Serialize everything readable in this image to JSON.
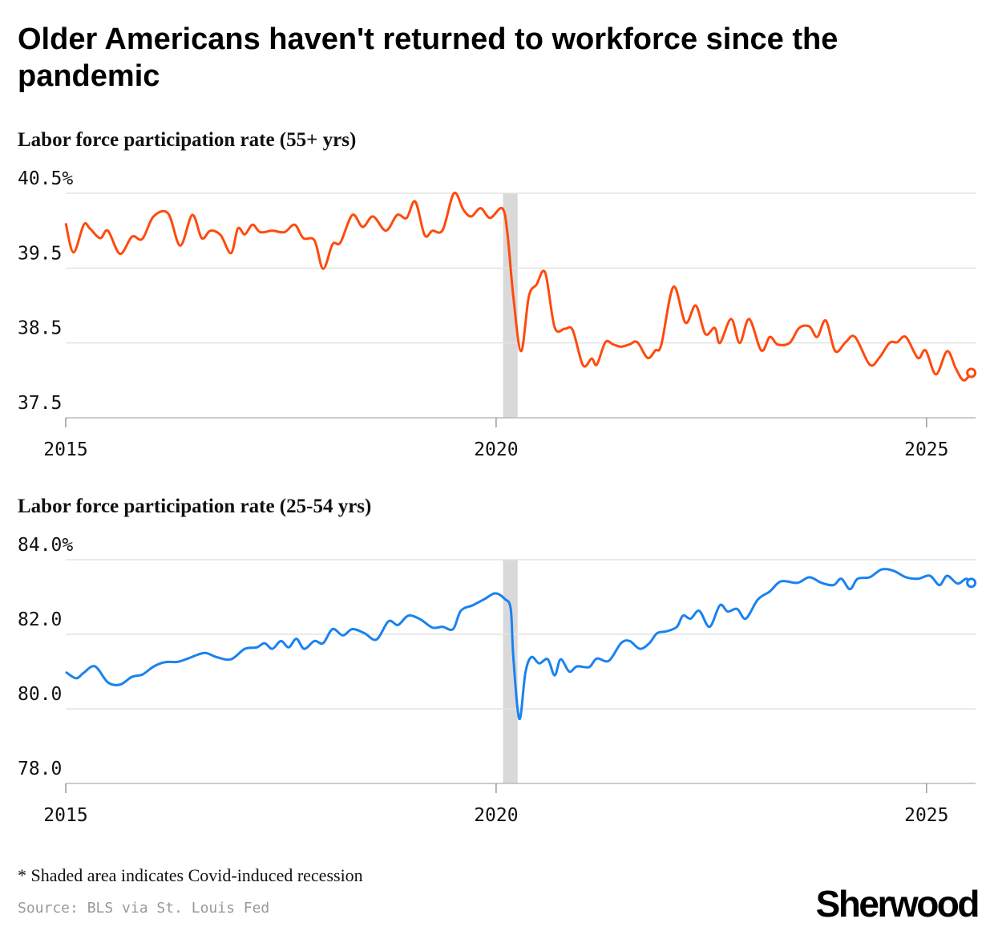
{
  "title": "Older Americans haven't returned to workforce since the pandemic",
  "chart_data": [
    {
      "type": "line",
      "subtitle": "Labor force participation rate (55+ yrs)",
      "color": "#ff4a0d",
      "x": [
        2015.0,
        2015.09,
        2015.21,
        2015.28,
        2015.4,
        2015.49,
        2015.63,
        2015.77,
        2015.89,
        2016.02,
        2016.19,
        2016.33,
        2016.47,
        2016.58,
        2016.68,
        2016.8,
        2016.92,
        2017.0,
        2017.08,
        2017.17,
        2017.26,
        2017.4,
        2017.54,
        2017.66,
        2017.76,
        2017.89,
        2017.99,
        2018.1,
        2018.19,
        2018.33,
        2018.45,
        2018.57,
        2018.72,
        2018.85,
        2018.96,
        2019.06,
        2019.17,
        2019.26,
        2019.38,
        2019.51,
        2019.62,
        2019.71,
        2019.82,
        2019.93,
        2020.07,
        2020.13,
        2020.2,
        2020.29,
        2020.38,
        2020.47,
        2020.57,
        2020.68,
        2020.8,
        2020.89,
        2021.01,
        2021.11,
        2021.17,
        2021.27,
        2021.36,
        2021.45,
        2021.55,
        2021.64,
        2021.76,
        2021.85,
        2021.92,
        2022.06,
        2022.2,
        2022.32,
        2022.43,
        2022.54,
        2022.6,
        2022.73,
        2022.83,
        2022.94,
        2023.08,
        2023.18,
        2023.27,
        2023.41,
        2023.52,
        2023.64,
        2023.73,
        2023.83,
        2023.94,
        2024.06,
        2024.17,
        2024.34,
        2024.45,
        2024.57,
        2024.66,
        2024.76,
        2024.9,
        2024.99,
        2025.11,
        2025.24,
        2025.34,
        2025.43,
        2025.52
      ],
      "values": [
        40.1,
        39.71,
        40.08,
        40.03,
        39.9,
        40.0,
        39.69,
        39.92,
        39.89,
        40.19,
        40.23,
        39.8,
        40.21,
        39.9,
        40.0,
        39.94,
        39.7,
        40.03,
        39.95,
        40.08,
        39.98,
        40.0,
        39.98,
        40.08,
        39.9,
        39.87,
        39.49,
        39.82,
        39.84,
        40.21,
        40.05,
        40.19,
        40.0,
        40.21,
        40.17,
        40.39,
        39.94,
        40.0,
        40.01,
        40.5,
        40.28,
        40.19,
        40.3,
        40.17,
        40.3,
        39.98,
        39.12,
        38.39,
        39.12,
        39.28,
        39.44,
        38.71,
        38.69,
        38.67,
        38.2,
        38.29,
        38.21,
        38.51,
        38.48,
        38.45,
        38.48,
        38.51,
        38.3,
        38.4,
        38.48,
        39.25,
        38.77,
        39.0,
        38.62,
        38.7,
        38.5,
        38.82,
        38.5,
        38.82,
        38.4,
        38.58,
        38.48,
        38.5,
        38.7,
        38.72,
        38.58,
        38.8,
        38.39,
        38.51,
        38.58,
        38.21,
        38.3,
        38.5,
        38.51,
        38.58,
        38.3,
        38.4,
        38.08,
        38.39,
        38.16,
        38.0,
        38.1
      ],
      "xlim": [
        2015,
        2025.57
      ],
      "xticks": [
        2015,
        2020,
        2025
      ],
      "ylim": [
        37.5,
        40.5
      ],
      "yticks": [
        {
          "value": 40.5,
          "label": "40.5%"
        },
        39.5,
        38.5,
        37.5
      ],
      "recession_span": [
        2020.08,
        2020.25
      ],
      "grid": true
    },
    {
      "type": "line",
      "subtitle": "Labor force participation rate (25-54 yrs)",
      "color": "#1a82f0",
      "x": [
        2015.0,
        2015.12,
        2015.21,
        2015.34,
        2015.49,
        2015.63,
        2015.77,
        2015.89,
        2016.01,
        2016.1,
        2016.19,
        2016.3,
        2016.42,
        2016.61,
        2016.75,
        2016.92,
        2017.08,
        2017.22,
        2017.31,
        2017.4,
        2017.5,
        2017.59,
        2017.68,
        2017.77,
        2017.89,
        2017.99,
        2018.1,
        2018.22,
        2018.33,
        2018.47,
        2018.61,
        2018.75,
        2018.86,
        2018.98,
        2019.12,
        2019.26,
        2019.38,
        2019.5,
        2019.59,
        2019.73,
        2019.87,
        2019.99,
        2020.1,
        2020.17,
        2020.2,
        2020.27,
        2020.34,
        2020.41,
        2020.5,
        2020.6,
        2020.68,
        2020.75,
        2020.85,
        2020.94,
        2021.08,
        2021.17,
        2021.31,
        2021.45,
        2021.55,
        2021.67,
        2021.78,
        2021.87,
        2021.98,
        2022.1,
        2022.17,
        2022.26,
        2022.36,
        2022.48,
        2022.6,
        2022.69,
        2022.8,
        2022.9,
        2023.04,
        2023.18,
        2023.31,
        2023.5,
        2023.64,
        2023.78,
        2023.92,
        2024.01,
        2024.11,
        2024.2,
        2024.34,
        2024.48,
        2024.62,
        2024.76,
        2024.9,
        2025.04,
        2025.15,
        2025.24,
        2025.36,
        2025.46,
        2025.52
      ],
      "values": [
        80.99,
        80.82,
        80.97,
        81.14,
        80.71,
        80.65,
        80.86,
        80.92,
        81.12,
        81.22,
        81.26,
        81.26,
        81.35,
        81.5,
        81.39,
        81.33,
        81.61,
        81.65,
        81.76,
        81.61,
        81.82,
        81.65,
        81.88,
        81.61,
        81.82,
        81.76,
        82.14,
        81.97,
        82.14,
        82.03,
        81.86,
        82.35,
        82.25,
        82.5,
        82.4,
        82.18,
        82.2,
        82.14,
        82.63,
        82.78,
        82.95,
        83.1,
        82.95,
        82.68,
        81.39,
        79.73,
        80.97,
        81.39,
        81.22,
        81.33,
        80.9,
        81.33,
        81.0,
        81.14,
        81.12,
        81.35,
        81.29,
        81.76,
        81.82,
        81.61,
        81.76,
        82.03,
        82.08,
        82.2,
        82.5,
        82.42,
        82.63,
        82.2,
        82.78,
        82.61,
        82.68,
        82.42,
        82.93,
        83.15,
        83.42,
        83.38,
        83.53,
        83.38,
        83.32,
        83.49,
        83.21,
        83.49,
        83.53,
        83.74,
        83.7,
        83.53,
        83.49,
        83.57,
        83.32,
        83.57,
        83.36,
        83.49,
        83.38
      ],
      "xlim": [
        2015,
        2025.57
      ],
      "xticks": [
        2015,
        2020,
        2025
      ],
      "ylim": [
        78,
        84
      ],
      "yticks": [
        {
          "value": 84,
          "label": "84.0%"
        },
        {
          "value": 82,
          "label": "82.0"
        },
        {
          "value": 80,
          "label": "80.0"
        },
        {
          "value": 78,
          "label": "78.0"
        }
      ],
      "recession_span": [
        2020.08,
        2020.25
      ],
      "grid": true
    }
  ],
  "footnote": "* Shaded area indicates Covid-induced recession",
  "source": "Source: BLS via St. Louis Fed",
  "logo": "Sherwood"
}
